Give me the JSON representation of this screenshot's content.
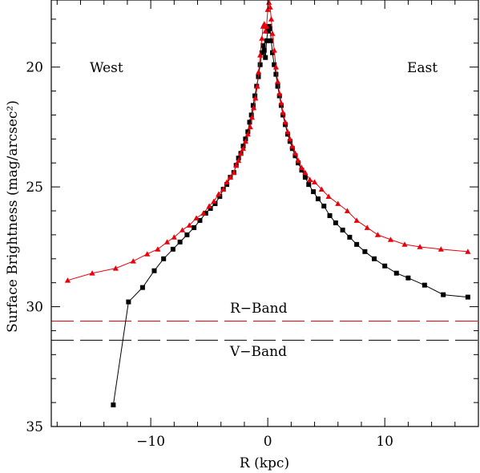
{
  "colors": {
    "r_band": "#e8000b",
    "v_band": "#000000",
    "axis": "#000000"
  },
  "chart_data": {
    "type": "line",
    "xlabel": "R (kpc)",
    "ylabel": "Surface Brightness (mag/arcsec²)",
    "xlim": [
      -18.5,
      18
    ],
    "ylim": [
      35,
      17.2
    ],
    "y_inverted": true,
    "x_ticks": [
      -10,
      0,
      10
    ],
    "x_tick_labels": [
      "−10",
      "0",
      "10"
    ],
    "y_ticks": [
      20,
      25,
      30,
      35
    ],
    "y_tick_labels": [
      "20",
      "25",
      "30",
      "35"
    ],
    "annotations": [
      {
        "text": "West"
      },
      {
        "text": "East"
      },
      {
        "text": "R−Band"
      },
      {
        "text": "V−Band"
      }
    ],
    "series": [
      {
        "marker": "triangle",
        "color": "#e8000b",
        "reference_level": 30.6,
        "points": [
          [
            -17.1,
            28.9
          ],
          [
            -15.0,
            28.6
          ],
          [
            -13.0,
            28.4
          ],
          [
            -11.5,
            28.1
          ],
          [
            -10.3,
            27.8
          ],
          [
            -9.4,
            27.6
          ],
          [
            -8.6,
            27.3
          ],
          [
            -8.0,
            27.1
          ],
          [
            -7.3,
            26.8
          ],
          [
            -6.7,
            26.6
          ],
          [
            -6.1,
            26.3
          ],
          [
            -5.5,
            26.1
          ],
          [
            -5.0,
            25.8
          ],
          [
            -4.6,
            25.6
          ],
          [
            -4.2,
            25.3
          ],
          [
            -3.8,
            25.1
          ],
          [
            -3.5,
            24.8
          ],
          [
            -3.2,
            24.6
          ],
          [
            -2.9,
            24.4
          ],
          [
            -2.7,
            24.1
          ],
          [
            -2.5,
            23.9
          ],
          [
            -2.3,
            23.6
          ],
          [
            -2.1,
            23.4
          ],
          [
            -1.9,
            23.1
          ],
          [
            -1.7,
            22.8
          ],
          [
            -1.5,
            22.5
          ],
          [
            -1.35,
            22.1
          ],
          [
            -1.2,
            21.7
          ],
          [
            -1.05,
            21.3
          ],
          [
            -0.9,
            20.8
          ],
          [
            -0.78,
            20.2
          ],
          [
            -0.65,
            19.5
          ],
          [
            -0.5,
            18.8
          ],
          [
            -0.4,
            18.3
          ],
          [
            -0.3,
            18.2
          ],
          [
            -0.2,
            18.5
          ],
          [
            -0.1,
            18.3
          ],
          [
            0.0,
            17.6
          ],
          [
            0.1,
            17.3
          ],
          [
            0.2,
            17.5
          ],
          [
            0.3,
            18.0
          ],
          [
            0.4,
            18.6
          ],
          [
            0.55,
            19.3
          ],
          [
            0.7,
            20.0
          ],
          [
            0.85,
            20.6
          ],
          [
            1.0,
            21.1
          ],
          [
            1.15,
            21.5
          ],
          [
            1.3,
            21.9
          ],
          [
            1.5,
            22.3
          ],
          [
            1.7,
            22.7
          ],
          [
            1.9,
            23.0
          ],
          [
            2.1,
            23.3
          ],
          [
            2.35,
            23.6
          ],
          [
            2.6,
            23.9
          ],
          [
            2.9,
            24.2
          ],
          [
            3.2,
            24.4
          ],
          [
            3.6,
            24.7
          ],
          [
            4.0,
            24.8
          ],
          [
            4.6,
            25.1
          ],
          [
            5.2,
            25.4
          ],
          [
            6.0,
            25.7
          ],
          [
            6.8,
            26.0
          ],
          [
            7.6,
            26.4
          ],
          [
            8.5,
            26.7
          ],
          [
            9.4,
            27.0
          ],
          [
            10.5,
            27.2
          ],
          [
            11.7,
            27.4
          ],
          [
            13.0,
            27.5
          ],
          [
            14.8,
            27.6
          ],
          [
            17.1,
            27.7
          ]
        ]
      },
      {
        "marker": "square",
        "color": "#000000",
        "reference_level": 31.4,
        "points": [
          [
            -13.2,
            34.1
          ],
          [
            -11.9,
            29.8
          ],
          [
            -10.7,
            29.2
          ],
          [
            -9.7,
            28.5
          ],
          [
            -8.9,
            28.0
          ],
          [
            -8.1,
            27.6
          ],
          [
            -7.5,
            27.3
          ],
          [
            -6.9,
            27.0
          ],
          [
            -6.3,
            26.7
          ],
          [
            -5.8,
            26.4
          ],
          [
            -5.3,
            26.1
          ],
          [
            -4.9,
            25.9
          ],
          [
            -4.5,
            25.7
          ],
          [
            -4.1,
            25.4
          ],
          [
            -3.8,
            25.1
          ],
          [
            -3.5,
            24.9
          ],
          [
            -3.2,
            24.6
          ],
          [
            -2.9,
            24.4
          ],
          [
            -2.7,
            24.1
          ],
          [
            -2.5,
            23.8
          ],
          [
            -2.3,
            23.6
          ],
          [
            -2.1,
            23.3
          ],
          [
            -1.9,
            23.0
          ],
          [
            -1.7,
            22.7
          ],
          [
            -1.55,
            22.3
          ],
          [
            -1.4,
            22.0
          ],
          [
            -1.25,
            21.6
          ],
          [
            -1.1,
            21.2
          ],
          [
            -0.95,
            20.8
          ],
          [
            -0.8,
            20.4
          ],
          [
            -0.65,
            19.9
          ],
          [
            -0.5,
            19.4
          ],
          [
            -0.4,
            19.1
          ],
          [
            -0.3,
            19.3
          ],
          [
            -0.2,
            19.6
          ],
          [
            -0.1,
            18.9
          ],
          [
            0.0,
            18.5
          ],
          [
            0.1,
            18.3
          ],
          [
            0.2,
            18.4
          ],
          [
            0.3,
            18.9
          ],
          [
            0.4,
            19.4
          ],
          [
            0.55,
            19.9
          ],
          [
            0.7,
            20.3
          ],
          [
            0.85,
            20.8
          ],
          [
            1.0,
            21.2
          ],
          [
            1.15,
            21.6
          ],
          [
            1.3,
            22.0
          ],
          [
            1.5,
            22.4
          ],
          [
            1.7,
            22.8
          ],
          [
            1.9,
            23.1
          ],
          [
            2.1,
            23.4
          ],
          [
            2.35,
            23.7
          ],
          [
            2.6,
            24.0
          ],
          [
            2.9,
            24.3
          ],
          [
            3.2,
            24.6
          ],
          [
            3.5,
            24.9
          ],
          [
            3.9,
            25.2
          ],
          [
            4.3,
            25.5
          ],
          [
            4.8,
            25.8
          ],
          [
            5.3,
            26.2
          ],
          [
            5.8,
            26.5
          ],
          [
            6.4,
            26.8
          ],
          [
            7.0,
            27.1
          ],
          [
            7.6,
            27.4
          ],
          [
            8.3,
            27.7
          ],
          [
            9.1,
            28.0
          ],
          [
            10.0,
            28.3
          ],
          [
            11.0,
            28.6
          ],
          [
            12.0,
            28.8
          ],
          [
            13.4,
            29.1
          ],
          [
            15.0,
            29.5
          ],
          [
            17.1,
            29.6
          ]
        ]
      }
    ]
  }
}
